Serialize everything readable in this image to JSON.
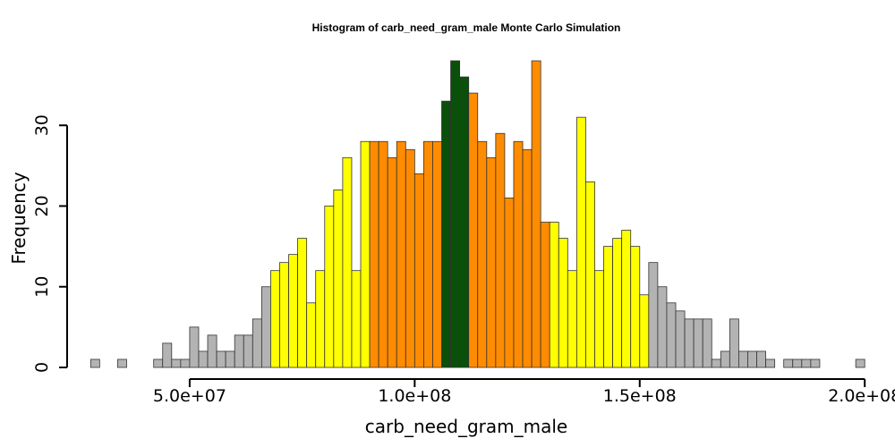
{
  "chart_data": {
    "type": "bar",
    "title": "Histogram of  carb_need_gram_male  Monte Carlo Simulation",
    "xlabel": "carb_need_gram_male",
    "ylabel": "Frequency",
    "bin_start": 28000000,
    "bin_width": 2000000,
    "counts": [
      1,
      0,
      0,
      1,
      0,
      0,
      0,
      1,
      3,
      1,
      1,
      5,
      2,
      4,
      2,
      2,
      4,
      4,
      6,
      10,
      12,
      13,
      14,
      16,
      8,
      12,
      20,
      22,
      26,
      12,
      28,
      28,
      28,
      26,
      28,
      27,
      24,
      28,
      28,
      33,
      38,
      36,
      34,
      28,
      26,
      29,
      21,
      28,
      27,
      38,
      18,
      18,
      16,
      12,
      31,
      23,
      12,
      15,
      16,
      17,
      15,
      9,
      13,
      10,
      8,
      7,
      6,
      6,
      6,
      1,
      2,
      6,
      2,
      2,
      2,
      1,
      0,
      1,
      1,
      1,
      1,
      0,
      0,
      0,
      0,
      1
    ],
    "colors": {
      "tail": "#b3b3b3",
      "mid": "#ffff00",
      "inner": "#ff8c00",
      "center": "#0a4f0a"
    },
    "color_bands": [
      {
        "from": 0,
        "to": 19,
        "color": "tail"
      },
      {
        "from": 20,
        "to": 30,
        "color": "mid"
      },
      {
        "from": 31,
        "to": 38,
        "color": "inner"
      },
      {
        "from": 39,
        "to": 41,
        "color": "center"
      },
      {
        "from": 42,
        "to": 50,
        "color": "inner"
      },
      {
        "from": 51,
        "to": 61,
        "color": "mid"
      },
      {
        "from": 62,
        "to": 85,
        "color": "tail"
      }
    ],
    "xlim": [
      25000000,
      200000000
    ],
    "ylim": [
      0,
      38
    ],
    "x_ticks": [
      {
        "value": 50000000,
        "label": "5.0e+07"
      },
      {
        "value": 100000000,
        "label": "1.0e+08"
      },
      {
        "value": 150000000,
        "label": "1.5e+08"
      },
      {
        "value": 200000000,
        "label": "2.0e+08"
      }
    ],
    "y_ticks": [
      {
        "value": 0,
        "label": "0"
      },
      {
        "value": 10,
        "label": "10"
      },
      {
        "value": 20,
        "label": "20"
      },
      {
        "value": 30,
        "label": "30"
      }
    ],
    "grid": false,
    "legend": "none"
  }
}
